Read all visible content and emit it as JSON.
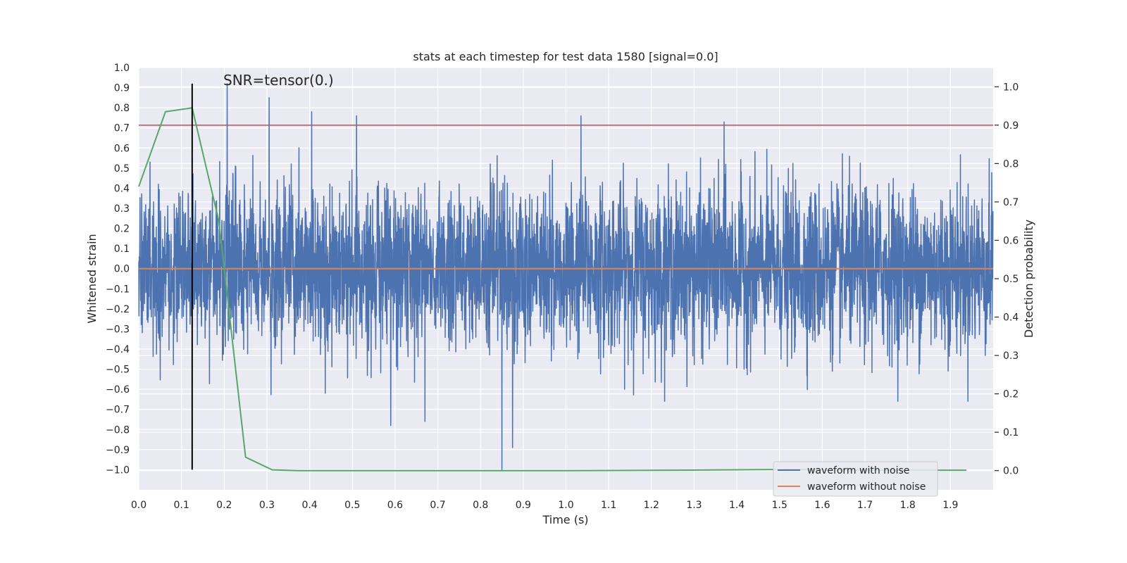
{
  "chart_data": {
    "type": "line",
    "title": "stats at each timestep for test data 1580 [signal=0.0]",
    "annotation": "SNR=tensor(0.)",
    "xlabel": "Time (s)",
    "ylabel": "Whitened strain",
    "y2label": "Detection probability",
    "xlim": [
      0.0,
      2.0
    ],
    "ylim": [
      -1.1,
      1.0
    ],
    "y2lim": [
      -0.05,
      1.05
    ],
    "x_ticks": [
      0.0,
      0.1,
      0.2,
      0.3,
      0.4,
      0.5,
      0.6,
      0.7,
      0.8,
      0.9,
      1.0,
      1.1,
      1.2,
      1.3,
      1.4,
      1.5,
      1.6,
      1.7,
      1.8,
      1.9
    ],
    "x_tick_labels": [
      "0.0",
      "0.1",
      "0.2",
      "0.3",
      "0.4",
      "0.5",
      "0.6",
      "0.7",
      "0.8",
      "0.9",
      "1.0",
      "1.1",
      "1.2",
      "1.3",
      "1.4",
      "1.5",
      "1.6",
      "1.7",
      "1.8",
      "1.9"
    ],
    "y_ticks": [
      1.0,
      0.9,
      0.8,
      0.7,
      0.6,
      0.5,
      0.4,
      0.3,
      0.2,
      0.1,
      0.0,
      -0.1,
      -0.2,
      -0.3,
      -0.4,
      -0.5,
      -0.6,
      -0.7,
      -0.8,
      -0.9,
      -1.0
    ],
    "y_tick_labels": [
      "1.0",
      "0.9",
      "0.8",
      "0.7",
      "0.6",
      "0.5",
      "0.4",
      "0.3",
      "0.2",
      "0.1",
      "0.0",
      "−0.1",
      "−0.2",
      "−0.3",
      "−0.4",
      "−0.5",
      "−0.6",
      "−0.7",
      "−0.8",
      "−0.9",
      "−1.0"
    ],
    "y2_ticks": [
      1.0,
      0.9,
      0.8,
      0.7,
      0.6,
      0.5,
      0.4,
      0.3,
      0.2,
      0.1,
      0.0
    ],
    "y2_tick_labels": [
      "1.0",
      "0.9",
      "0.8",
      "0.7",
      "0.6",
      "0.5",
      "0.4",
      "0.3",
      "0.2",
      "0.1",
      "0.0"
    ],
    "grid": true,
    "legend_position": "bottom-right",
    "series": [
      {
        "name": "waveform with noise",
        "axis": "left",
        "color": "#4c72b0",
        "sample_rate_hz": 2048,
        "approx_range": [
          -1.0,
          0.92
        ],
        "approx_std": 0.2,
        "notable_peaks": [
          {
            "x": 0.207,
            "y": 0.92
          },
          {
            "x": 0.305,
            "y": 0.85
          },
          {
            "x": 0.405,
            "y": 0.78
          },
          {
            "x": 0.51,
            "y": 0.76
          },
          {
            "x": 1.035,
            "y": 0.76
          },
          {
            "x": 1.37,
            "y": 0.73
          },
          {
            "x": 0.85,
            "y": -1.0
          },
          {
            "x": 0.875,
            "y": -0.89
          },
          {
            "x": 0.59,
            "y": -0.78
          },
          {
            "x": 0.67,
            "y": -0.76
          }
        ]
      },
      {
        "name": "waveform without noise",
        "axis": "left",
        "color": "#dd8452",
        "x": [
          0.0,
          2.0
        ],
        "y": [
          0.0,
          0.0
        ]
      },
      {
        "name": "detection probability",
        "axis": "right",
        "color": "#55a868",
        "x": [
          0.0,
          0.0625,
          0.125,
          0.1875,
          0.25,
          0.3125,
          0.375,
          0.5,
          0.75,
          1.0,
          1.25,
          1.5,
          1.75,
          1.9375
        ],
        "y": [
          0.74,
          0.935,
          0.945,
          0.65,
          0.035,
          0.002,
          0.0,
          0.0,
          0.0,
          0.0,
          0.001,
          0.003,
          0.001,
          0.001
        ]
      }
    ],
    "threshold_line": {
      "axis": "right",
      "y": 0.9,
      "color": "#c44e52"
    },
    "marker_line": {
      "x": 0.125,
      "y_from": -1.0,
      "y_to": 0.92,
      "color": "#000000"
    }
  }
}
